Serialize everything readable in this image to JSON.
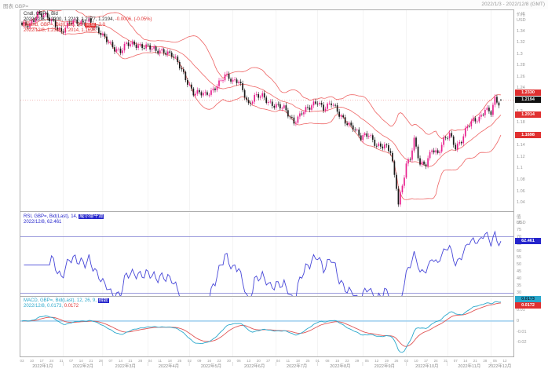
{
  "window": {
    "title_left": "图表 GBP=",
    "title_right": "2022/1/3 - 2022/12/8 (GMT)"
  },
  "main_panel": {
    "legend_cndl": "Cndl, GBP=, Bid",
    "legend_ohlc": "2022/12/8, 1.2200, 1.2213, 1.2177, 1.2194, ",
    "legend_change": "-0.0006, (-0.05%)",
    "legend_bband_pre": "BBand, GBP=, Bid(Last), 20, ",
    "legend_bband_type": "简单",
    "legend_bband_post": ", 2.0",
    "legend_bband_values": "2022/12/8, 1.2330, 1.2014, 1.1698",
    "axis_title": "价格",
    "axis_unit": "USD",
    "box_upper": "1.2330",
    "box_last": "1.2194",
    "box_middle": "1.2014",
    "box_lower": "1.1698"
  },
  "rsi_panel": {
    "legend_pre": "RSI, GBP=, Bid(Last), 14, ",
    "legend_type": "威尔德平滑",
    "legend_values": "2022/12/8, 62.461",
    "axis_title": "值",
    "axis_unit": "USD",
    "box_value": "62.461"
  },
  "macd_panel": {
    "legend_pre": "MACD, GBP=, Bid(Last), 12, 26, 9, ",
    "legend_type": "指数",
    "legend_val1": "2022/12/8, 0.0173, ",
    "legend_val2": "0.0172",
    "axis_title": "值",
    "axis_unit": "USD",
    "box_macd": "0.0173",
    "box_signal": "0.0172"
  },
  "chart_data": {
    "type": "candlestick",
    "symbol": "GBP=",
    "interval": "daily",
    "date_range": "2022/1/3 - 2022/12/8",
    "n_days": 244,
    "axis_days": 248,
    "last": {
      "date": "2022/12/8",
      "open": 1.22,
      "high": 1.2213,
      "low": 1.2177,
      "close": 1.2194,
      "change": "-0.0006",
      "change_pct": "(-0.05%)"
    },
    "indicators": {
      "bband": {
        "period": 20,
        "ma_type": "简单",
        "stdev": 2.0,
        "upper": 1.233,
        "middle": 1.2014,
        "lower": 1.1698
      },
      "rsi": {
        "period": 14,
        "smoothing": "威尔德平滑",
        "value": 62.461,
        "levels": [
          70,
          30
        ]
      },
      "macd": {
        "fast": 12,
        "slow": 26,
        "signal_period": 9,
        "ma_type": "指数",
        "macd_value": 0.0173,
        "signal_value": 0.0172
      }
    },
    "price_axis": {
      "min": 1.025,
      "max": 1.375,
      "tick_values": [
        1.34,
        1.32,
        1.3,
        1.28,
        1.26,
        1.24,
        1.22,
        1.2,
        1.18,
        1.16,
        1.14,
        1.12,
        1.1,
        1.08,
        1.06,
        1.04
      ],
      "tick_labels": [
        "1.34",
        "1.32",
        "1.3",
        "1.28",
        "1.26",
        "1.24",
        "1.22",
        "1.2",
        "1.18",
        "1.16",
        "1.14",
        "1.12",
        "1.1",
        "1.08",
        "1.06",
        "1.04"
      ]
    },
    "rsi_axis": {
      "min": 28,
      "max": 87,
      "tick_values": [
        85,
        80,
        75,
        70,
        65,
        60,
        55,
        50,
        45,
        40,
        35,
        30
      ]
    },
    "macd_axis": {
      "tick_values": [
        0.01,
        0,
        -0.01,
        -0.02
      ],
      "tick_labels": [
        "0.01",
        "0",
        "-0.01",
        "-0.02"
      ]
    },
    "close_anchors": [
      [
        0,
        1.348
      ],
      [
        4,
        1.353
      ],
      [
        8,
        1.371
      ],
      [
        12,
        1.364
      ],
      [
        16,
        1.355
      ],
      [
        20,
        1.34
      ],
      [
        24,
        1.353
      ],
      [
        28,
        1.354
      ],
      [
        32,
        1.356
      ],
      [
        34,
        1.36
      ],
      [
        38,
        1.34
      ],
      [
        41,
        1.33
      ],
      [
        44,
        1.323
      ],
      [
        47,
        1.311
      ],
      [
        50,
        1.303
      ],
      [
        53,
        1.315
      ],
      [
        57,
        1.318
      ],
      [
        61,
        1.315
      ],
      [
        64,
        1.311
      ],
      [
        68,
        1.304
      ],
      [
        72,
        1.307
      ],
      [
        76,
        1.299
      ],
      [
        79,
        1.283
      ],
      [
        83,
        1.257
      ],
      [
        87,
        1.234
      ],
      [
        90,
        1.232
      ],
      [
        93,
        1.226
      ],
      [
        96,
        1.233
      ],
      [
        99,
        1.248
      ],
      [
        103,
        1.263
      ],
      [
        107,
        1.249
      ],
      [
        110,
        1.254
      ],
      [
        113,
        1.231
      ],
      [
        115,
        1.211
      ],
      [
        118,
        1.223
      ],
      [
        122,
        1.226
      ],
      [
        126,
        1.215
      ],
      [
        129,
        1.21
      ],
      [
        133,
        1.203
      ],
      [
        136,
        1.189
      ],
      [
        138,
        1.182
      ],
      [
        142,
        1.199
      ],
      [
        146,
        1.204
      ],
      [
        150,
        1.217
      ],
      [
        153,
        1.207
      ],
      [
        157,
        1.214
      ],
      [
        161,
        1.192
      ],
      [
        164,
        1.183
      ],
      [
        168,
        1.174
      ],
      [
        172,
        1.151
      ],
      [
        176,
        1.159
      ],
      [
        180,
        1.142
      ],
      [
        184,
        1.138
      ],
      [
        187,
        1.127
      ],
      [
        189,
        1.086
      ],
      [
        190,
        1.069
      ],
      [
        191,
        1.039
      ],
      [
        193,
        1.073
      ],
      [
        195,
        1.108
      ],
      [
        197,
        1.117
      ],
      [
        199,
        1.147
      ],
      [
        202,
        1.106
      ],
      [
        205,
        1.11
      ],
      [
        208,
        1.136
      ],
      [
        211,
        1.123
      ],
      [
        214,
        1.147
      ],
      [
        217,
        1.161
      ],
      [
        220,
        1.139
      ],
      [
        223,
        1.148
      ],
      [
        226,
        1.171
      ],
      [
        229,
        1.183
      ],
      [
        232,
        1.189
      ],
      [
        235,
        1.205
      ],
      [
        238,
        1.196
      ],
      [
        240,
        1.218
      ],
      [
        242,
        1.212
      ],
      [
        243,
        1.2194
      ]
    ],
    "month_boundaries": [
      0,
      21,
      41,
      64,
      85,
      107,
      129,
      150,
      173,
      195,
      216,
      238,
      247
    ],
    "week_day_labels": [
      "03",
      "10",
      "17",
      "24",
      "31",
      "07",
      "14",
      "21",
      "28",
      "07",
      "14",
      "21",
      "28",
      "04",
      "11",
      "18",
      "25",
      "02",
      "09",
      "16",
      "23",
      "30",
      "06",
      "13",
      "20",
      "27",
      "04",
      "11",
      "18",
      "25",
      "01",
      "08",
      "15",
      "22",
      "29",
      "05",
      "12",
      "19",
      "26",
      "03",
      "10",
      "17",
      "24",
      "31",
      "07",
      "14",
      "21",
      "28",
      "05",
      "12"
    ],
    "month_labels": [
      "2022年1月",
      "2022年2月",
      "2022年3月",
      "2022年4月",
      "2022年5月",
      "2022年6月",
      "2022年7月",
      "2022年8月",
      "2022年9月",
      "2022年10月",
      "2022年11月",
      "2022年12月"
    ],
    "colors": {
      "up": "#e8218e",
      "down": "#1a1a1a",
      "band": "#ee6666",
      "rsi": "#4646d8",
      "rsi_level": "#7a7ad0",
      "macd": "#2aa8cc",
      "macd_signal": "#e05555",
      "zero_line": "#a8d4f0",
      "box_red": "#e03030",
      "box_black": "#111111",
      "box_blue": "#2525cc",
      "box_cyan": "#2aa8cc",
      "frame": "#adadad",
      "grid": "#ededed",
      "axis_text": "#999999"
    }
  }
}
